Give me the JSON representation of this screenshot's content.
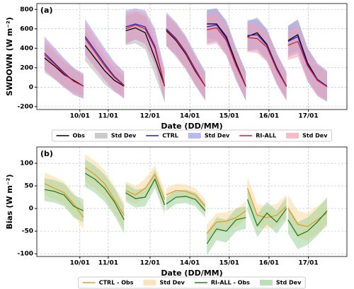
{
  "chart_data": [
    {
      "type": "line",
      "panel_label": "(a)",
      "x_label": "Date (DD/MM)",
      "y_label": "SWDOWN (W m⁻²)",
      "x": [
        0,
        0.24,
        0.48,
        0.72,
        0.96,
        0.98,
        1,
        1.24,
        1.48,
        1.72,
        1.96,
        1.98,
        2,
        2.24,
        2.48,
        2.72,
        2.96,
        2.98,
        3,
        3.24,
        3.48,
        3.72,
        3.96,
        3.98,
        4,
        4.24,
        4.48,
        4.72,
        4.96,
        4.98,
        5,
        5.24,
        5.48,
        5.72,
        5.96,
        5.98,
        6,
        6.24,
        6.48,
        6.72,
        6.96
      ],
      "xlim": [
        -0.19,
        7.45
      ],
      "xticks": [
        {
          "value": 0.87,
          "label": "10/01"
        },
        {
          "value": 1.57,
          "label": "11/01"
        },
        {
          "value": 2.6,
          "label": "12/01"
        },
        {
          "value": 3.58,
          "label": "14/01"
        },
        {
          "value": 4.55,
          "label": "15/01"
        },
        {
          "value": 5.53,
          "label": "16/01"
        },
        {
          "value": 6.5,
          "label": "17/01"
        }
      ],
      "ylim": [
        -230,
        860
      ],
      "yticks": [
        -200,
        0,
        200,
        400,
        600,
        800
      ],
      "grid": true,
      "series": [
        {
          "name": "Obs",
          "color": "#000000",
          "std_name": "Std Dev",
          "std_color": "#b5b5b5",
          "values": [
            300,
            220,
            130,
            70,
            10,
            null,
            430,
            300,
            170,
            70,
            10,
            null,
            580,
            610,
            560,
            300,
            10,
            null,
            580,
            480,
            340,
            160,
            10,
            null,
            650,
            650,
            520,
            250,
            10,
            null,
            520,
            560,
            440,
            200,
            10,
            null,
            480,
            540,
            250,
            80,
            10
          ],
          "std": [
            150,
            140,
            130,
            120,
            100,
            null,
            160,
            150,
            140,
            120,
            100,
            null,
            150,
            160,
            170,
            180,
            160,
            null,
            160,
            170,
            160,
            150,
            130,
            null,
            150,
            160,
            170,
            160,
            150,
            null,
            150,
            160,
            160,
            150,
            130,
            null,
            150,
            160,
            160,
            150,
            140
          ]
        },
        {
          "name": "CTRL",
          "color": "#1f1fc8",
          "std_name": "Std Dev",
          "std_color": "#9a9aee",
          "values": [
            350,
            250,
            150,
            60,
            10,
            null,
            520,
            380,
            240,
            110,
            20,
            null,
            620,
            650,
            620,
            420,
            10,
            null,
            600,
            500,
            360,
            180,
            10,
            null,
            620,
            640,
            500,
            230,
            10,
            null,
            530,
            540,
            430,
            190,
            10,
            null,
            470,
            520,
            230,
            80,
            10
          ],
          "std": [
            170,
            160,
            150,
            140,
            130,
            null,
            180,
            170,
            160,
            150,
            140,
            null,
            170,
            160,
            170,
            180,
            170,
            null,
            170,
            170,
            170,
            160,
            150,
            null,
            170,
            170,
            170,
            160,
            150,
            null,
            160,
            160,
            160,
            160,
            150,
            null,
            160,
            170,
            170,
            170,
            160
          ]
        },
        {
          "name": "RI-ALL",
          "color": "#d81e2a",
          "std_name": "Std Dev",
          "std_color": "#f2a0b0",
          "values": [
            330,
            240,
            140,
            60,
            10,
            null,
            500,
            360,
            220,
            100,
            15,
            null,
            600,
            640,
            600,
            400,
            10,
            null,
            590,
            490,
            350,
            170,
            10,
            null,
            590,
            610,
            480,
            220,
            5,
            null,
            510,
            500,
            410,
            180,
            5,
            null,
            430,
            470,
            220,
            70,
            5
          ],
          "std": [
            160,
            150,
            140,
            130,
            120,
            null,
            170,
            160,
            150,
            140,
            130,
            null,
            160,
            150,
            160,
            170,
            160,
            null,
            160,
            160,
            160,
            150,
            140,
            null,
            160,
            160,
            160,
            150,
            140,
            null,
            150,
            150,
            150,
            150,
            140,
            null,
            150,
            160,
            160,
            160,
            150
          ]
        }
      ]
    },
    {
      "type": "line",
      "panel_label": "(b)",
      "x_label": "Date (DD/MM)",
      "y_label": "Bias (W m⁻²)",
      "x": [
        0,
        0.24,
        0.48,
        0.72,
        0.96,
        0.98,
        1,
        1.24,
        1.48,
        1.72,
        1.96,
        1.98,
        2,
        2.24,
        2.48,
        2.72,
        2.96,
        2.98,
        3,
        3.24,
        3.48,
        3.72,
        3.96,
        3.98,
        4,
        4.24,
        4.48,
        4.72,
        4.96,
        4.98,
        5,
        5.24,
        5.48,
        5.72,
        5.96,
        5.98,
        6,
        6.24,
        6.48,
        6.72,
        6.96
      ],
      "xlim": [
        -0.19,
        7.45
      ],
      "xticks": [
        {
          "value": 0.87,
          "label": "10/01"
        },
        {
          "value": 1.57,
          "label": "11/01"
        },
        {
          "value": 2.6,
          "label": "12/01"
        },
        {
          "value": 3.58,
          "label": "14/01"
        },
        {
          "value": 4.55,
          "label": "15/01"
        },
        {
          "value": 5.53,
          "label": "16/01"
        },
        {
          "value": 6.5,
          "label": "17/01"
        }
      ],
      "ylim": [
        -106,
        136
      ],
      "yticks": [
        -100,
        -50,
        0,
        50,
        100
      ],
      "grid": true,
      "series": [
        {
          "name": "CTRL - Obs",
          "color": "#e59a24",
          "std_name": "Std Dev",
          "std_color": "#f9d9a0",
          "values": [
            55,
            45,
            35,
            10,
            -20,
            null,
            90,
            75,
            55,
            20,
            -15,
            null,
            40,
            30,
            45,
            75,
            20,
            null,
            30,
            40,
            38,
            30,
            5,
            null,
            -55,
            -30,
            -28,
            -20,
            -5,
            null,
            45,
            -15,
            -20,
            -15,
            5,
            null,
            0,
            -35,
            -40,
            -25,
            -10
          ],
          "std": [
            25,
            25,
            25,
            25,
            25,
            null,
            30,
            30,
            30,
            30,
            30,
            null,
            20,
            20,
            20,
            20,
            20,
            null,
            15,
            15,
            15,
            15,
            15,
            null,
            20,
            20,
            20,
            20,
            20,
            null,
            25,
            25,
            25,
            25,
            25,
            null,
            30,
            30,
            30,
            30,
            30
          ]
        },
        {
          "name": "RI-ALL - Obs",
          "color": "#2a7a1e",
          "std_name": "Std Dev",
          "std_color": "#9fd29a",
          "values": [
            42,
            38,
            30,
            5,
            -5,
            null,
            78,
            65,
            45,
            15,
            -25,
            null,
            35,
            22,
            25,
            65,
            8,
            null,
            10,
            25,
            27,
            20,
            -5,
            null,
            -78,
            -45,
            -50,
            -25,
            -20,
            null,
            20,
            -38,
            -10,
            -30,
            0,
            null,
            -25,
            -60,
            -50,
            -30,
            -5
          ],
          "std": [
            25,
            25,
            25,
            25,
            25,
            null,
            30,
            30,
            30,
            30,
            30,
            null,
            20,
            20,
            20,
            20,
            20,
            null,
            15,
            15,
            15,
            15,
            15,
            null,
            25,
            25,
            25,
            25,
            25,
            null,
            25,
            25,
            25,
            25,
            25,
            null,
            30,
            30,
            30,
            30,
            30
          ]
        }
      ]
    }
  ]
}
